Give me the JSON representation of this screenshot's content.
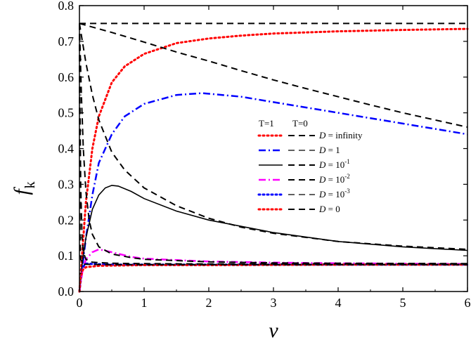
{
  "chart_data": {
    "type": "line",
    "xlabel": "v",
    "ylabel": "f",
    "ylabel_sub": "k",
    "xlim": [
      0,
      6
    ],
    "ylim": [
      0,
      0.8
    ],
    "xticks": [
      "0",
      "1",
      "2",
      "3",
      "4",
      "5",
      "6"
    ],
    "yticks": [
      "0.0",
      "0.1",
      "0.2",
      "0.3",
      "0.4",
      "0.5",
      "0.6",
      "0.7",
      "0.8"
    ],
    "grid": false,
    "legend": {
      "placement": "center-right",
      "header_T1": "T=1",
      "header_T0": "T=0",
      "entries": [
        {
          "var": "D",
          "label_text": " = infinity",
          "exp": ""
        },
        {
          "var": "D",
          "label_text": " = 1",
          "exp": ""
        },
        {
          "var": "D",
          "label_text": " = 10",
          "exp": "-1"
        },
        {
          "var": "D",
          "label_text": " = 10",
          "exp": "-2"
        },
        {
          "var": "D",
          "label_text": " = 10",
          "exp": "-3"
        },
        {
          "var": "D",
          "label_text": " = 0",
          "exp": ""
        }
      ]
    },
    "series": [
      {
        "group": "T=1",
        "color": "#ff0000",
        "style": "dotted",
        "x": [
          0,
          0.1,
          0.2,
          0.3,
          0.5,
          0.7,
          1.0,
          1.5,
          2.0,
          2.5,
          3.0,
          4.0,
          5.0,
          6.0
        ],
        "y": [
          0,
          0.25,
          0.4,
          0.49,
          0.585,
          0.63,
          0.665,
          0.695,
          0.708,
          0.716,
          0.722,
          0.728,
          0.732,
          0.735
        ]
      },
      {
        "group": "T=1",
        "color": "#0000ff",
        "style": "dashdot",
        "x": [
          0,
          0.1,
          0.2,
          0.3,
          0.5,
          0.7,
          1.0,
          1.5,
          1.9,
          2.5,
          3.0,
          4.0,
          5.0,
          6.0
        ],
        "y": [
          0,
          0.15,
          0.27,
          0.36,
          0.44,
          0.49,
          0.525,
          0.55,
          0.555,
          0.545,
          0.53,
          0.5,
          0.47,
          0.44
        ]
      },
      {
        "group": "T=1",
        "color": "#000000",
        "style": "solid",
        "x": [
          0,
          0.05,
          0.1,
          0.2,
          0.3,
          0.4,
          0.5,
          0.6,
          0.8,
          1.0,
          1.5,
          2.0,
          3.0,
          4.0,
          5.0,
          6.0
        ],
        "y": [
          0,
          0.09,
          0.15,
          0.23,
          0.27,
          0.29,
          0.297,
          0.295,
          0.28,
          0.26,
          0.225,
          0.2,
          0.165,
          0.14,
          0.125,
          0.115
        ]
      },
      {
        "group": "T=1",
        "color": "#ff00ff",
        "style": "dashdot",
        "x": [
          0,
          0.05,
          0.1,
          0.2,
          0.3,
          0.5,
          0.8,
          1.0,
          2.0,
          3.0,
          4.0,
          5.0,
          6.0
        ],
        "y": [
          0,
          0.06,
          0.09,
          0.11,
          0.118,
          0.11,
          0.097,
          0.092,
          0.084,
          0.081,
          0.079,
          0.078,
          0.077
        ]
      },
      {
        "group": "T=1",
        "color": "#0000ff",
        "style": "dotted",
        "x": [
          0,
          0.03,
          0.06,
          0.1,
          0.2,
          0.5,
          1.0,
          2.0,
          4.0,
          6.0
        ],
        "y": [
          0,
          0.05,
          0.07,
          0.078,
          0.077,
          0.075,
          0.075,
          0.075,
          0.075,
          0.075
        ]
      },
      {
        "group": "T=1",
        "color": "#ff0000",
        "style": "dotted",
        "x": [
          0,
          0.02,
          0.05,
          0.1,
          0.3,
          1.0,
          2.0,
          4.0,
          6.0
        ],
        "y": [
          0,
          0.04,
          0.06,
          0.068,
          0.072,
          0.074,
          0.074,
          0.075,
          0.075
        ]
      },
      {
        "group": "T=0",
        "color": "#000000",
        "style": "dashed",
        "x": [
          0,
          0.1,
          0.5,
          1.0,
          2.0,
          3.0,
          4.0,
          5.0,
          6.0
        ],
        "y": [
          0.75,
          0.75,
          0.75,
          0.75,
          0.75,
          0.75,
          0.75,
          0.75,
          0.75
        ]
      },
      {
        "group": "T=0",
        "color": "#000000",
        "style": "dashed",
        "x": [
          0,
          0.5,
          1.0,
          1.5,
          2.0,
          2.5,
          3.0,
          3.5,
          4.0,
          4.5,
          5.0,
          5.5,
          6.0
        ],
        "y": [
          0.75,
          0.725,
          0.698,
          0.67,
          0.645,
          0.618,
          0.592,
          0.568,
          0.545,
          0.522,
          0.5,
          0.48,
          0.46
        ]
      },
      {
        "group": "T=0",
        "color": "#000000",
        "style": "dashed",
        "x": [
          0,
          0.1,
          0.2,
          0.3,
          0.5,
          0.7,
          1.0,
          1.5,
          2.0,
          2.5,
          3.0,
          4.0,
          5.0,
          6.0
        ],
        "y": [
          0.75,
          0.64,
          0.55,
          0.48,
          0.39,
          0.34,
          0.29,
          0.24,
          0.205,
          0.18,
          0.163,
          0.14,
          0.127,
          0.118
        ]
      },
      {
        "group": "T=0",
        "color": "#000000",
        "style": "dashed",
        "x": [
          0,
          0.03,
          0.06,
          0.1,
          0.15,
          0.2,
          0.3,
          0.5,
          0.8,
          1.0,
          2.0,
          3.0,
          4.0,
          6.0
        ],
        "y": [
          0.75,
          0.55,
          0.4,
          0.28,
          0.2,
          0.16,
          0.125,
          0.105,
          0.095,
          0.09,
          0.083,
          0.08,
          0.079,
          0.078
        ]
      },
      {
        "group": "T=0",
        "color": "#000000",
        "style": "dashed",
        "x": [
          0,
          0.01,
          0.02,
          0.04,
          0.06,
          0.1,
          0.2,
          0.5,
          1.0,
          2.0,
          4.0,
          6.0
        ],
        "y": [
          0.75,
          0.5,
          0.3,
          0.15,
          0.11,
          0.09,
          0.082,
          0.079,
          0.078,
          0.077,
          0.077,
          0.077
        ]
      },
      {
        "group": "T=0",
        "color": "#000000",
        "style": "dashed",
        "x": [
          0,
          0.005,
          0.01,
          0.02,
          0.04,
          0.1,
          0.5,
          2.0,
          6.0
        ],
        "y": [
          0.75,
          0.3,
          0.15,
          0.09,
          0.078,
          0.076,
          0.075,
          0.075,
          0.075
        ]
      }
    ],
    "legend_samples": [
      {
        "t1_color": "#ff0000",
        "t1_style": "dotted",
        "t0_color": "#000000",
        "t0_style": "dashed"
      },
      {
        "t1_color": "#0000ff",
        "t1_style": "dashdot",
        "t0_color": "#000000",
        "t0_style": "dashed_thin"
      },
      {
        "t1_color": "#000000",
        "t1_style": "solid",
        "t0_color": "#000000",
        "t0_style": "dashed"
      },
      {
        "t1_color": "#ff00ff",
        "t1_style": "dashdot",
        "t0_color": "#000000",
        "t0_style": "dashed"
      },
      {
        "t1_color": "#0000ff",
        "t1_style": "dotted",
        "t0_color": "#000000",
        "t0_style": "dashed_thin"
      },
      {
        "t1_color": "#ff0000",
        "t1_style": "dotted",
        "t0_color": "#000000",
        "t0_style": "dashed"
      }
    ]
  }
}
